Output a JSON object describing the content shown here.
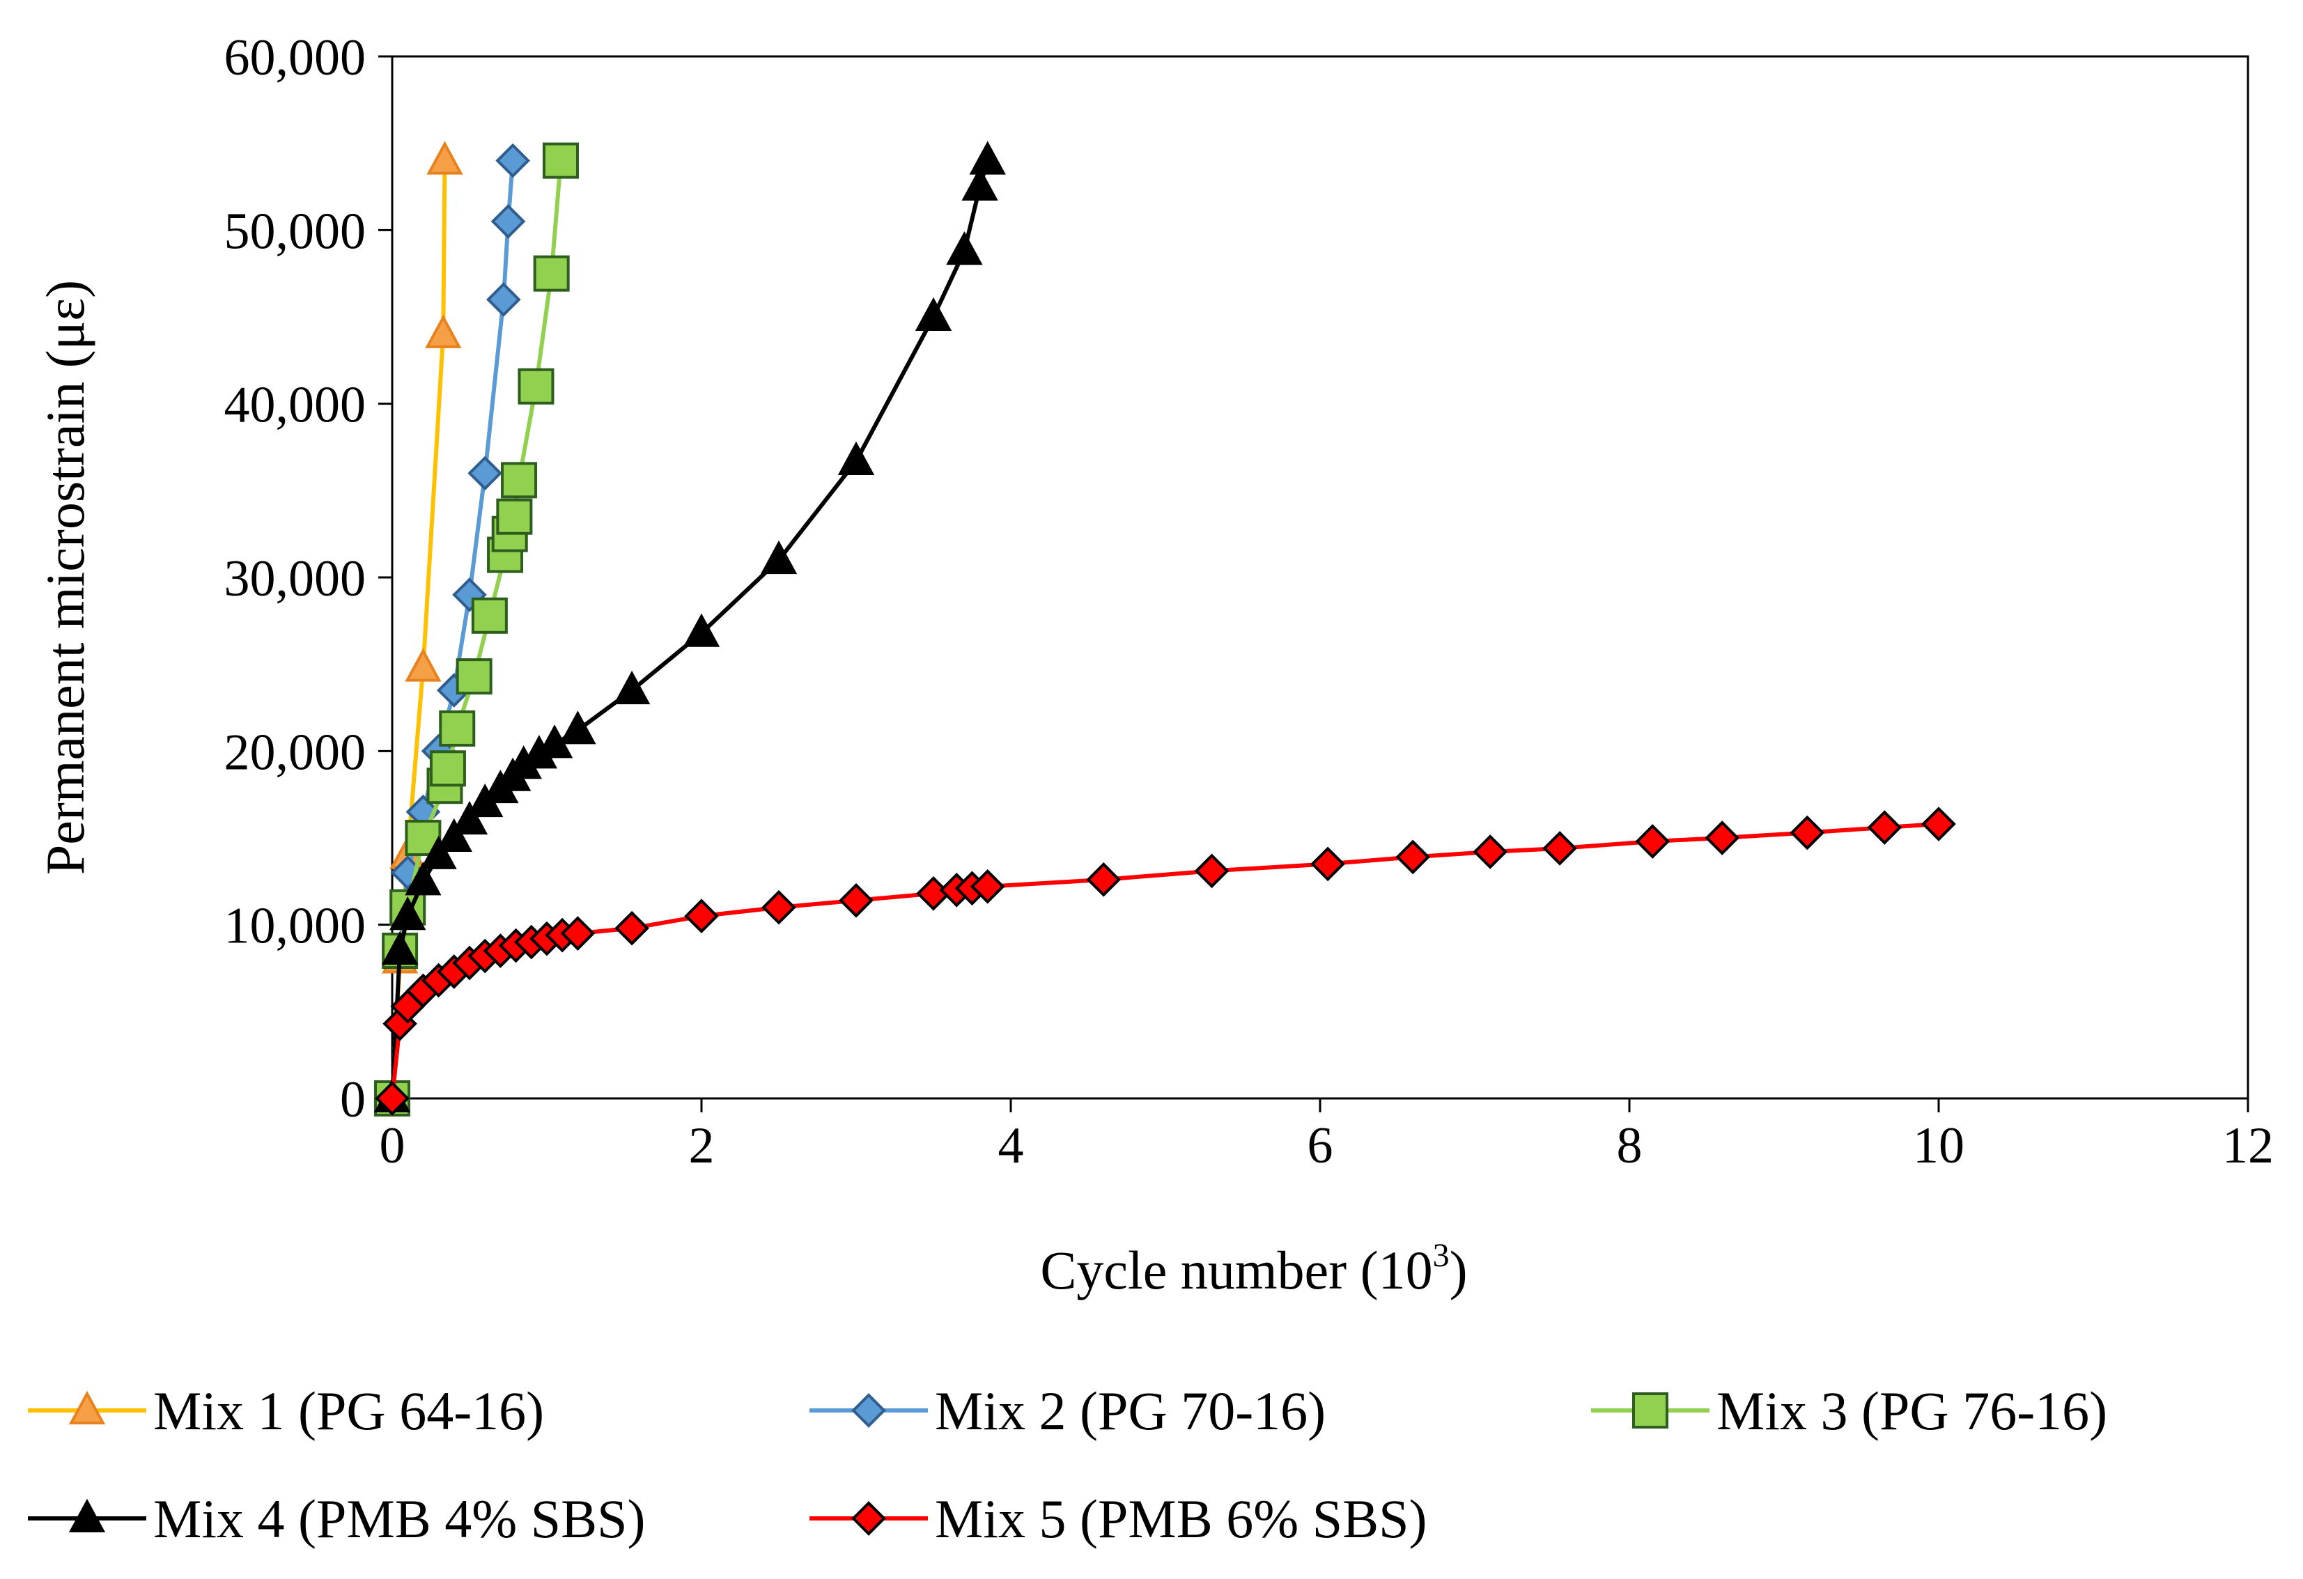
{
  "chart_data": {
    "type": "line",
    "title": "",
    "xlabel": "Cycle number (10",
    "xlabel_sup": "3",
    "xlabel_close": ")",
    "ylabel": "Permanent microstrain (με)",
    "xlim": [
      0,
      12
    ],
    "ylim": [
      0,
      60000
    ],
    "x_ticks": [
      0,
      2,
      4,
      6,
      8,
      10,
      12
    ],
    "y_ticks": [
      0,
      10000,
      20000,
      30000,
      40000,
      50000,
      60000
    ],
    "x_tick_labels": [
      "0",
      "2",
      "4",
      "6",
      "8",
      "10",
      "12"
    ],
    "y_tick_labels": [
      "0",
      "10,000",
      "20,000",
      "30,000",
      "40,000",
      "50,000",
      "60,000"
    ],
    "grid": false,
    "legend_position": "bottom",
    "series": [
      {
        "name": "Mix 1 (PG 64-16)",
        "color": "#FFC000",
        "marker": "triangle",
        "marker_fill": "#F5A046",
        "marker_stroke": "#E8821E",
        "x": [
          0,
          0.05,
          0.1,
          0.2,
          0.33,
          0.34
        ],
        "y": [
          0,
          8000,
          14000,
          24800,
          44000,
          54000
        ]
      },
      {
        "name": "Mix 2 (PG 70-16)",
        "color": "#5B9BD5",
        "marker": "diamond",
        "marker_fill": "#5B9BD5",
        "marker_stroke": "#2E5D8E",
        "x": [
          0,
          0.05,
          0.1,
          0.2,
          0.3,
          0.4,
          0.5,
          0.6,
          0.72,
          0.75,
          0.78
        ],
        "y": [
          0,
          8500,
          13000,
          16500,
          20000,
          23500,
          29000,
          36000,
          46000,
          50500,
          54000
        ]
      },
      {
        "name": "Mix 3 (PG 76-16)",
        "color": "#92D050",
        "marker": "square",
        "marker_fill": "#92D050",
        "marker_stroke": "#2E5E1E",
        "x": [
          0,
          0.05,
          0.1,
          0.2,
          0.34,
          0.36,
          0.42,
          0.53,
          0.63,
          0.73,
          0.76,
          0.79,
          0.82,
          0.93,
          1.03,
          1.09
        ],
        "y": [
          0,
          8500,
          11000,
          15000,
          18000,
          19000,
          21300,
          24300,
          27800,
          31300,
          32500,
          33500,
          35600,
          41000,
          47500,
          54000
        ]
      },
      {
        "name": "Mix 4 (PMB 4% SBS)",
        "color": "#000000",
        "marker": "triangle",
        "marker_fill": "#000000",
        "marker_stroke": "#000000",
        "x": [
          0,
          0.05,
          0.1,
          0.2,
          0.3,
          0.4,
          0.5,
          0.6,
          0.7,
          0.78,
          0.85,
          0.95,
          1.05,
          1.2,
          1.55,
          2.0,
          2.5,
          3.0,
          3.5,
          3.7,
          3.8,
          3.85
        ],
        "y": [
          0,
          8500,
          10500,
          12500,
          14000,
          15000,
          16000,
          17000,
          17800,
          18500,
          19200,
          19800,
          20400,
          21200,
          23500,
          26800,
          31000,
          36700,
          45000,
          48800,
          52500,
          54000
        ]
      },
      {
        "name": "Mix 5 (PMB 6% SBS)",
        "color": "#FF0000",
        "marker": "diamond",
        "marker_fill": "#FF0000",
        "marker_stroke": "#000000",
        "x": [
          0,
          0.05,
          0.1,
          0.2,
          0.3,
          0.4,
          0.5,
          0.6,
          0.7,
          0.8,
          0.9,
          1.0,
          1.1,
          1.2,
          1.55,
          2.0,
          2.5,
          3.0,
          3.5,
          3.65,
          3.75,
          3.85,
          4.6,
          5.3,
          6.05,
          6.6,
          7.1,
          7.55,
          8.15,
          8.6,
          9.15,
          9.65,
          10.0
        ],
        "y": [
          0,
          4300,
          5300,
          6200,
          6800,
          7300,
          7800,
          8200,
          8500,
          8800,
          9000,
          9200,
          9400,
          9500,
          9800,
          10500,
          11000,
          11400,
          11800,
          12000,
          12100,
          12200,
          12600,
          13100,
          13500,
          13900,
          14200,
          14400,
          14800,
          15000,
          15300,
          15600,
          15800
        ]
      }
    ]
  }
}
